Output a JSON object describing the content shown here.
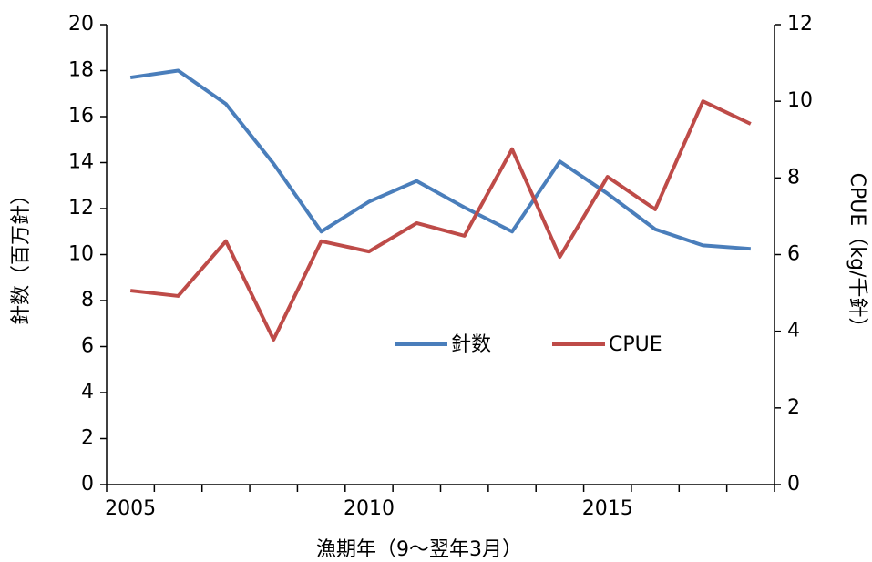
{
  "chart_data": {
    "type": "line",
    "x_label": "漁期年（9～翌年3月）",
    "y_label": "針数（百万針）",
    "y2_label": "CPUE（kg/千針）",
    "categories": [
      "2005",
      null,
      null,
      null,
      null,
      "2010",
      null,
      null,
      null,
      null,
      "2015",
      null,
      null,
      null
    ],
    "series": [
      {
        "name": "針数",
        "color": "#4a7ebb",
        "values": [
          17.7,
          18.0,
          16.55,
          13.95,
          11.0,
          12.3,
          13.2,
          12.05,
          11.0,
          14.05,
          12.65,
          11.1,
          10.4,
          10.25
        ]
      },
      {
        "name": "CPUE",
        "color": "#be4b48",
        "axis": "y2",
        "values": [
          5.06,
          4.92,
          6.35,
          3.78,
          6.35,
          6.08,
          6.82,
          6.49,
          8.75,
          5.94,
          8.03,
          7.18,
          10.0,
          9.41
        ]
      }
    ],
    "ylim": [
      0,
      20
    ],
    "yticks": [
      0,
      2,
      4,
      6,
      8,
      10,
      12,
      14,
      16,
      18,
      20
    ],
    "y2lim": [
      0,
      12
    ],
    "y2ticks": [
      0,
      2,
      4,
      6,
      8,
      10,
      12
    ],
    "legend": "center",
    "grid": false
  }
}
